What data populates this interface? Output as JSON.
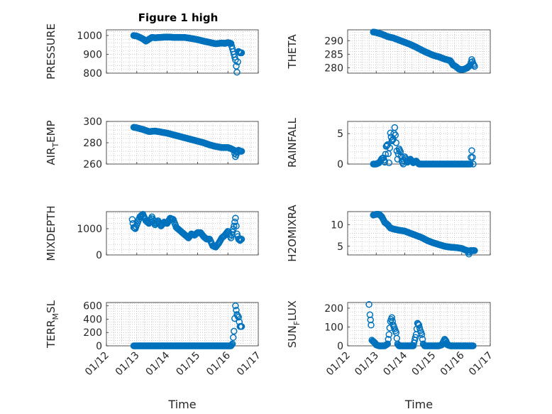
{
  "figure": {
    "title": "Figure 1 high"
  },
  "chart_data": [
    {
      "id": "pressure",
      "type": "scatter",
      "title": "Figure 1 high",
      "ylabel": "PRESSURE",
      "ylim": [
        800,
        1030
      ],
      "yticks": [
        "800",
        "900",
        "1000"
      ],
      "ytick_values": [
        800,
        900,
        1000
      ],
      "xlim": [
        0,
        5
      ],
      "xticks": [],
      "xlabel": "",
      "grid": true,
      "x": [
        0.9,
        1.0,
        1.1,
        1.2,
        1.3,
        1.4,
        1.5,
        1.6,
        1.8,
        2.0,
        2.2,
        2.4,
        2.6,
        2.8,
        3.0,
        3.2,
        3.4,
        3.6,
        3.8,
        3.9,
        4.0,
        4.1,
        4.2,
        4.25,
        4.3,
        4.35,
        4.4,
        4.45
      ],
      "y": [
        1000,
        997,
        990,
        982,
        970,
        980,
        990,
        988,
        990,
        992,
        990,
        990,
        989,
        984,
        978,
        970,
        963,
        956,
        960,
        958,
        962,
        958,
        900,
        870,
        805,
        915,
        908,
        908
      ]
    },
    {
      "id": "theta",
      "type": "scatter",
      "ylabel": "THETA",
      "ylim": [
        278,
        294
      ],
      "yticks": [
        "280",
        "285",
        "290"
      ],
      "ytick_values": [
        280,
        285,
        290
      ],
      "xlim": [
        0,
        5
      ],
      "xticks": [],
      "xlabel": "",
      "grid": true,
      "x": [
        0.9,
        1.0,
        1.2,
        1.4,
        1.6,
        1.8,
        2.0,
        2.2,
        2.4,
        2.6,
        2.8,
        3.0,
        3.2,
        3.4,
        3.6,
        3.7,
        3.8,
        3.9,
        4.0,
        4.1,
        4.2,
        4.3,
        4.35,
        4.4,
        4.45
      ],
      "y": [
        293.2,
        293.0,
        292.4,
        291.5,
        291.0,
        290.2,
        289.4,
        288.6,
        287.6,
        286.5,
        285.5,
        284.6,
        284.0,
        283.2,
        282.6,
        281.0,
        280.4,
        279.5,
        279.3,
        279.5,
        280.0,
        281.0,
        283.0,
        281.5,
        280.5
      ]
    },
    {
      "id": "air_temp",
      "type": "scatter",
      "ylabel": "AIR",
      "ylabel_sub": "T",
      "ylabel_rest": "EMP",
      "ylim": [
        260,
        300
      ],
      "yticks": [
        "260",
        "280",
        "300"
      ],
      "ytick_values": [
        260,
        280,
        300
      ],
      "xlim": [
        0,
        5
      ],
      "xticks": [],
      "xlabel": "",
      "grid": true,
      "x": [
        0.9,
        1.0,
        1.2,
        1.4,
        1.6,
        1.8,
        2.0,
        2.2,
        2.4,
        2.6,
        2.8,
        3.0,
        3.2,
        3.4,
        3.6,
        3.8,
        4.0,
        4.1,
        4.2,
        4.25,
        4.3,
        4.35,
        4.4,
        4.45
      ],
      "y": [
        294.5,
        294.0,
        292.5,
        290.5,
        291.0,
        290.0,
        289.0,
        287.5,
        286.0,
        284.5,
        283.0,
        281.5,
        280.0,
        278.0,
        276.5,
        275.5,
        275.5,
        274.5,
        273.0,
        267.0,
        271.0,
        273.0,
        272.0,
        272.0
      ]
    },
    {
      "id": "rainfall",
      "type": "scatter",
      "ylabel": "RAINFALL",
      "ylim": [
        0,
        7
      ],
      "yticks": [
        "0",
        "5"
      ],
      "ytick_values": [
        0,
        5
      ],
      "xlim": [
        0,
        5
      ],
      "xticks": [],
      "xlabel": "",
      "grid": true,
      "x": [
        0.9,
        1.0,
        1.1,
        1.15,
        1.2,
        1.25,
        1.3,
        1.35,
        1.4,
        1.45,
        1.5,
        1.55,
        1.6,
        1.65,
        1.7,
        1.75,
        1.8,
        1.85,
        1.9,
        1.95,
        2.0,
        2.1,
        2.2,
        2.3,
        2.4,
        2.5,
        2.6,
        2.8,
        3.0,
        3.2,
        3.4,
        3.6,
        3.8,
        4.0,
        4.2,
        4.3,
        4.35,
        4.4
      ],
      "y": [
        0,
        0,
        0.2,
        0.5,
        0.9,
        1.0,
        0.3,
        2.9,
        3.2,
        0.2,
        5.1,
        3.8,
        4.1,
        6.0,
        3.5,
        0.8,
        2.5,
        2.0,
        0.5,
        0,
        1.2,
        0.3,
        0.8,
        0.2,
        0.5,
        0,
        0,
        0,
        0,
        0,
        0,
        0,
        0,
        0,
        0,
        0,
        2.2,
        0
      ]
    },
    {
      "id": "mixdepth",
      "type": "scatter",
      "ylabel": "MIXDEPTH",
      "ylim": [
        0,
        1650
      ],
      "yticks": [
        "0",
        "1000"
      ],
      "ytick_values": [
        0,
        1000
      ],
      "xlim": [
        0,
        5
      ],
      "xticks": [],
      "xlabel": "",
      "grid": true,
      "x": [
        0.85,
        0.9,
        0.95,
        1.0,
        1.1,
        1.2,
        1.3,
        1.4,
        1.5,
        1.6,
        1.7,
        1.8,
        1.9,
        2.0,
        2.1,
        2.2,
        2.3,
        2.4,
        2.5,
        2.6,
        2.7,
        2.8,
        2.9,
        3.0,
        3.1,
        3.2,
        3.3,
        3.4,
        3.5,
        3.6,
        3.7,
        3.8,
        3.9,
        4.0,
        4.1,
        4.2,
        4.25,
        4.3,
        4.35,
        4.4,
        4.45
      ],
      "y": [
        1350,
        1050,
        1000,
        1150,
        1450,
        1550,
        1300,
        1200,
        1450,
        1150,
        1300,
        1100,
        1250,
        1200,
        1400,
        1350,
        1050,
        950,
        850,
        750,
        650,
        800,
        750,
        850,
        850,
        700,
        600,
        600,
        350,
        300,
        450,
        650,
        750,
        900,
        650,
        1100,
        1400,
        800,
        600,
        550,
        600
      ]
    },
    {
      "id": "h2omixra",
      "type": "scatter",
      "ylabel": "H2OMIXRA",
      "ylim": [
        3,
        13
      ],
      "yticks": [
        "5",
        "10"
      ],
      "ytick_values": [
        5,
        10
      ],
      "xlim": [
        0,
        5
      ],
      "xticks": [],
      "xlabel": "",
      "grid": true,
      "x": [
        0.9,
        1.0,
        1.1,
        1.2,
        1.3,
        1.4,
        1.5,
        1.6,
        1.8,
        2.0,
        2.2,
        2.4,
        2.6,
        2.8,
        3.0,
        3.2,
        3.4,
        3.6,
        3.8,
        4.0,
        4.1,
        4.2,
        4.25,
        4.3,
        4.4,
        4.45
      ],
      "y": [
        12.2,
        12.4,
        12.4,
        11.8,
        10.5,
        10.0,
        9.2,
        9.0,
        8.7,
        8.5,
        8.0,
        7.5,
        7.0,
        6.3,
        5.8,
        5.4,
        5.0,
        4.8,
        4.7,
        4.5,
        4.2,
        4.0,
        3.2,
        4.0,
        4.0,
        4.0
      ]
    },
    {
      "id": "terr_msl",
      "type": "scatter",
      "ylabel": "TERR",
      "ylabel_sub": "M",
      "ylabel_rest": "SL",
      "ylim": [
        0,
        650
      ],
      "yticks": [
        "0",
        "200",
        "400",
        "600"
      ],
      "ytick_values": [
        0,
        200,
        400,
        600
      ],
      "xlim": [
        0,
        5
      ],
      "xticks": [
        "01/12",
        "01/13",
        "01/14",
        "01/15",
        "01/16",
        "01/17"
      ],
      "xtick_values": [
        0,
        1,
        2,
        3,
        4,
        5
      ],
      "xlabel": "Time",
      "grid": true,
      "x": [
        0.9,
        1.0,
        1.2,
        1.4,
        1.6,
        1.8,
        2.0,
        2.2,
        2.4,
        2.6,
        2.8,
        3.0,
        3.2,
        3.4,
        3.6,
        3.8,
        4.0,
        4.1,
        4.15,
        4.2,
        4.25,
        4.3,
        4.35,
        4.4,
        4.45
      ],
      "y": [
        0,
        0,
        0,
        0,
        0,
        0,
        0,
        0,
        0,
        0,
        0,
        0,
        0,
        0,
        0,
        0,
        0,
        0,
        30,
        220,
        600,
        470,
        430,
        290,
        290
      ]
    },
    {
      "id": "sun_flux",
      "type": "scatter",
      "ylabel": "SUN",
      "ylabel_sub": "F",
      "ylabel_rest": "LUX",
      "ylim": [
        0,
        230
      ],
      "yticks": [
        "0",
        "100",
        "200"
      ],
      "ytick_values": [
        0,
        100,
        200
      ],
      "xlim": [
        0,
        5
      ],
      "xticks": [
        "01/12",
        "01/13",
        "01/14",
        "01/15",
        "01/16",
        "01/17"
      ],
      "xtick_values": [
        0,
        1,
        2,
        3,
        4,
        5
      ],
      "xlabel": "Time",
      "grid": true,
      "x": [
        0.75,
        0.78,
        0.82,
        0.85,
        0.88,
        0.92,
        0.96,
        1.0,
        1.1,
        1.2,
        1.3,
        1.4,
        1.45,
        1.5,
        1.55,
        1.6,
        1.65,
        1.7,
        1.75,
        1.8,
        1.85,
        1.9,
        2.0,
        2.1,
        2.2,
        2.3,
        2.4,
        2.45,
        2.5,
        2.55,
        2.6,
        2.65,
        2.7,
        2.75,
        2.8,
        2.9,
        3.0,
        3.1,
        3.2,
        3.3,
        3.35,
        3.4,
        3.45,
        3.5,
        3.6,
        3.8,
        4.0,
        4.2,
        4.4
      ],
      "y": [
        220,
        165,
        110,
        30,
        25,
        20,
        15,
        5,
        0,
        0,
        0,
        10,
        60,
        130,
        150,
        110,
        90,
        70,
        10,
        0,
        0,
        0,
        0,
        0,
        0,
        0,
        60,
        120,
        110,
        80,
        60,
        10,
        0,
        0,
        0,
        0,
        0,
        0,
        0,
        5,
        20,
        35,
        25,
        5,
        0,
        0,
        0,
        0,
        0
      ]
    }
  ]
}
